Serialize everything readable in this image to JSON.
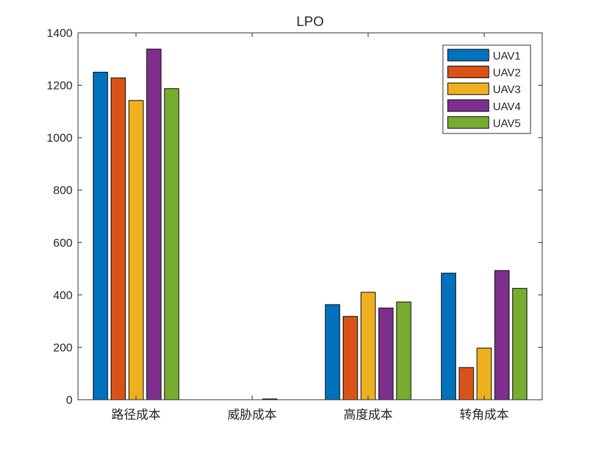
{
  "chart_data": {
    "type": "bar",
    "title": "LPO",
    "xlabel": "",
    "ylabel": "",
    "categories": [
      "路径成本",
      "威胁成本",
      "高度成本",
      "转角成本"
    ],
    "series": [
      {
        "name": "UAV1",
        "color": "#0072BD",
        "values": [
          1250,
          0,
          363,
          483
        ]
      },
      {
        "name": "UAV2",
        "color": "#D95319",
        "values": [
          1228,
          0,
          318,
          123
        ]
      },
      {
        "name": "UAV3",
        "color": "#EDB120",
        "values": [
          1142,
          0,
          410,
          197
        ]
      },
      {
        "name": "UAV4",
        "color": "#7E2F8E",
        "values": [
          1338,
          3,
          350,
          493
        ]
      },
      {
        "name": "UAV5",
        "color": "#77AC30",
        "values": [
          1187,
          0,
          373,
          425
        ]
      }
    ],
    "ylim": [
      0,
      1400
    ],
    "yticks": [
      0,
      200,
      400,
      600,
      800,
      1000,
      1200,
      1400
    ],
    "grid": false,
    "legend_position": "top-right"
  }
}
